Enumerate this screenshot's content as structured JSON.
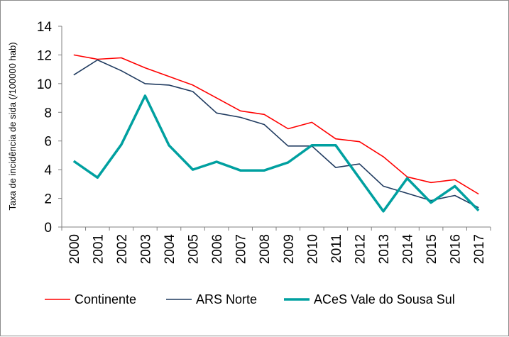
{
  "chart_data": {
    "type": "line",
    "title": "",
    "xlabel": "",
    "ylabel": "Taxa de incidência de sida (/100000 hab)",
    "ylim": [
      0,
      14
    ],
    "yticks": [
      0,
      2,
      4,
      6,
      8,
      10,
      12,
      14
    ],
    "grid": false,
    "legend_position": "bottom",
    "categories": [
      "2000",
      "2001",
      "2002",
      "2003",
      "2004",
      "2005",
      "2006",
      "2007",
      "2008",
      "2009",
      "2010",
      "2011",
      "2012",
      "2013",
      "2014",
      "2015",
      "2016",
      "2017"
    ],
    "series": [
      {
        "name": "Continente",
        "color": "#ff0000",
        "values": [
          12.0,
          11.7,
          11.8,
          11.1,
          10.5,
          9.9,
          9.0,
          8.1,
          7.85,
          6.85,
          7.3,
          6.15,
          5.95,
          4.9,
          3.5,
          3.1,
          3.3,
          2.3
        ]
      },
      {
        "name": "ARS Norte",
        "color": "#1f3a5f",
        "values": [
          10.6,
          11.65,
          10.9,
          10.0,
          9.9,
          9.45,
          7.95,
          7.65,
          7.15,
          5.65,
          5.65,
          4.15,
          4.4,
          2.85,
          2.35,
          1.85,
          2.2,
          1.35
        ]
      },
      {
        "name": "ACeS Vale do Sousa Sul",
        "color": "#00a0a0",
        "values": [
          4.6,
          3.45,
          5.75,
          9.15,
          5.7,
          4.0,
          4.55,
          3.95,
          3.95,
          4.5,
          5.7,
          5.7,
          3.4,
          1.1,
          3.4,
          1.7,
          2.85,
          1.15
        ]
      }
    ]
  }
}
